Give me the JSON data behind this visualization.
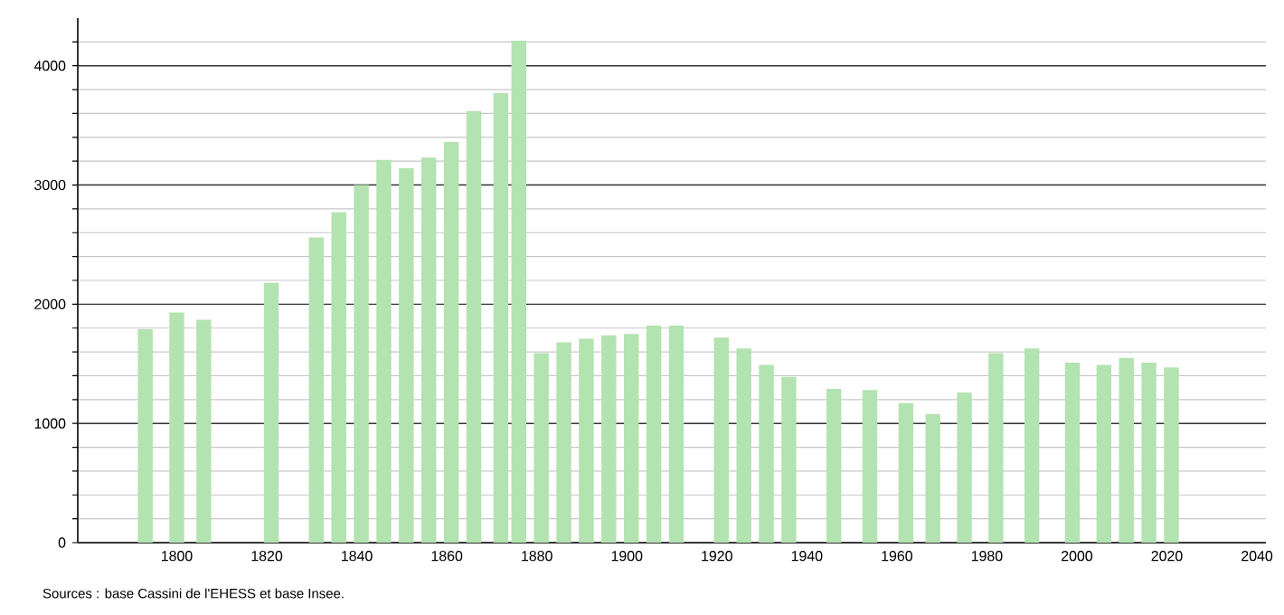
{
  "chart_data": {
    "type": "bar",
    "x": [
      1793,
      1800,
      1806,
      1821,
      1831,
      1836,
      1841,
      1846,
      1851,
      1856,
      1861,
      1866,
      1872,
      1876,
      1881,
      1886,
      1891,
      1896,
      1901,
      1906,
      1911,
      1921,
      1926,
      1931,
      1936,
      1946,
      1954,
      1962,
      1968,
      1975,
      1982,
      1990,
      1999,
      2006,
      2011,
      2016,
      2021
    ],
    "values": [
      1790,
      1930,
      1870,
      2180,
      2560,
      2770,
      3000,
      3210,
      3140,
      3230,
      3360,
      3620,
      3770,
      4210,
      1590,
      1680,
      1710,
      1740,
      1750,
      1820,
      1820,
      1720,
      1630,
      1490,
      1390,
      1290,
      1280,
      1170,
      1080,
      1260,
      1590,
      1630,
      1510,
      1490,
      1550,
      1510,
      1470
    ],
    "color": "#b3e3b0",
    "xlim": [
      1778,
      2042
    ],
    "xticks": [
      1800,
      1820,
      1840,
      1860,
      1880,
      1900,
      1920,
      1940,
      1960,
      1980,
      2000,
      2020,
      2040
    ],
    "ylim": [
      0,
      4400
    ],
    "yticks": [
      0,
      {
        "value": 200,
        "label": null
      },
      {
        "value": 400,
        "label": null
      },
      {
        "value": 600,
        "label": null
      },
      {
        "value": 800,
        "label": null
      },
      1000,
      {
        "value": 1200,
        "label": null
      },
      {
        "value": 1400,
        "label": null
      },
      {
        "value": 1600,
        "label": null
      },
      {
        "value": 1800,
        "label": null
      },
      2000,
      {
        "value": 2200,
        "label": null
      },
      {
        "value": 2400,
        "label": null
      },
      {
        "value": 2600,
        "label": null
      },
      {
        "value": 2800,
        "label": null
      },
      3000,
      {
        "value": 3200,
        "label": null
      },
      {
        "value": 3400,
        "label": null
      },
      {
        "value": 3600,
        "label": null
      },
      {
        "value": 3800,
        "label": null
      },
      4000,
      {
        "value": 4200,
        "label": null
      }
    ],
    "grid": "y",
    "annotations": [
      "Sources : base Cassini de l'EHESS et base Insee."
    ]
  }
}
